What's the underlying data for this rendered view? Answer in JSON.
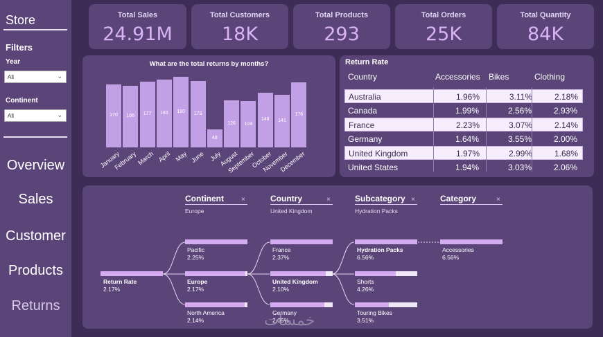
{
  "sidebar": {
    "title": "Store",
    "filters_title": "Filters",
    "year_label": "Year",
    "year_value": "All",
    "continent_label": "Continent",
    "continent_value": "All",
    "nav": [
      "Overview",
      "Sales",
      "Customer",
      "Products",
      "Returns"
    ]
  },
  "kpis": [
    {
      "label": "Total Sales",
      "value": "24.91M"
    },
    {
      "label": "Total Customers",
      "value": "18K"
    },
    {
      "label": "Total Products",
      "value": "293"
    },
    {
      "label": "Total Orders",
      "value": "25K"
    },
    {
      "label": "Total Quantity",
      "value": "84K"
    }
  ],
  "chart_data": {
    "type": "bar",
    "title": "What are the total returns by months?",
    "categories": [
      "January",
      "February",
      "March",
      "April",
      "May",
      "June",
      "July",
      "August",
      "September",
      "October",
      "November",
      "December"
    ],
    "values": [
      170,
      166,
      177,
      183,
      190,
      179,
      48,
      126,
      124,
      148,
      141,
      176
    ],
    "ylim": [
      0,
      190
    ],
    "color": "#c2a0e6"
  },
  "return_rate": {
    "title": "Return Rate",
    "headers": [
      "Country",
      "Accessories",
      "Bikes",
      "Clothing"
    ],
    "rows": [
      {
        "country": "Australia",
        "accessories": "1.96%",
        "bikes": "3.11%",
        "clothing": "2.18%"
      },
      {
        "country": "Canada",
        "accessories": "1.99%",
        "bikes": "2.56%",
        "clothing": "2.93%"
      },
      {
        "country": "France",
        "accessories": "2.23%",
        "bikes": "3.07%",
        "clothing": "2.14%"
      },
      {
        "country": "Germany",
        "accessories": "1.64%",
        "bikes": "3.55%",
        "clothing": "2.00%"
      },
      {
        "country": "United Kingdom",
        "accessories": "1.97%",
        "bikes": "2.99%",
        "clothing": "1.68%"
      },
      {
        "country": "United States",
        "accessories": "1.94%",
        "bikes": "3.03%",
        "clothing": "2.06%"
      }
    ]
  },
  "tree": {
    "levels": [
      {
        "label": "Continent",
        "selected": "Europe",
        "close": "×"
      },
      {
        "label": "Country",
        "selected": "United Kingdom",
        "close": "×"
      },
      {
        "label": "Subcategory",
        "selected": "Hydration Packs",
        "close": "×"
      },
      {
        "label": "Category",
        "selected": "",
        "close": "×"
      }
    ],
    "root": {
      "name": "Return Rate",
      "value": "2.17%"
    },
    "continents": [
      {
        "name": "Pacific",
        "value": "2.25%",
        "fill": 1.0
      },
      {
        "name": "Europe",
        "value": "2.17%",
        "fill": 0.97
      },
      {
        "name": "North America",
        "value": "2.14%",
        "fill": 0.95
      }
    ],
    "countries": [
      {
        "name": "France",
        "value": "2.37%",
        "fill": 1.0
      },
      {
        "name": "United Kingdom",
        "value": "2.10%",
        "fill": 0.89
      },
      {
        "name": "Germany",
        "value": "2.05%",
        "fill": 0.87
      }
    ],
    "subcategories": [
      {
        "name": "Hydration Packs",
        "value": "6.56%",
        "fill": 1.0
      },
      {
        "name": "Shorts",
        "value": "4.26%",
        "fill": 0.65
      },
      {
        "name": "Touring Bikes",
        "value": "3.51%",
        "fill": 0.54
      }
    ],
    "categories": [
      {
        "name": "Accessories",
        "value": "6.56%",
        "fill": 1.0
      }
    ]
  },
  "watermark": "خمسات"
}
